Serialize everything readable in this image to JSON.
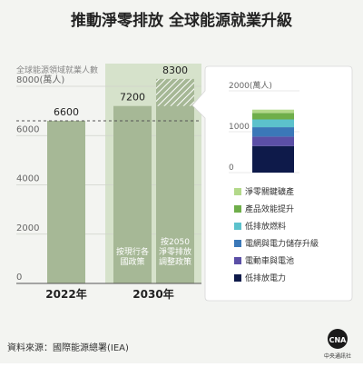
{
  "title": "推動淨零排放 全球能源就業升級",
  "source": "資料來源：國際能源總署(IEA)",
  "logo": {
    "mark": "CNA",
    "caption": "中央通訊社"
  },
  "colors": {
    "background": "#f3f4f1",
    "bar": "#a6b896",
    "bar_highlight_bg": "#d6e2cb",
    "label_light": "#ffffff",
    "legend_text": "#333333"
  },
  "chart_data": [
    {
      "type": "bar",
      "title": "",
      "ylabel": "全球能源領域就業人數",
      "ylim": [
        0,
        8000
      ],
      "yticks": [
        "0",
        "2000",
        "4000",
        "6000",
        "8000(萬人)"
      ],
      "groups": [
        "2022年",
        "2030年"
      ],
      "bars": [
        {
          "group": "2022年",
          "value": 6600,
          "label": "6600",
          "caption": ""
        },
        {
          "group": "2030年",
          "value": 7200,
          "label": "7200",
          "caption": "按現行各國政策"
        },
        {
          "group": "2030年",
          "value": 8300,
          "label": "8300",
          "caption": "按2050淨零排放調整政策"
        }
      ],
      "reference_line": 6600
    },
    {
      "type": "bar",
      "stacked": true,
      "ylim": [
        0,
        2000
      ],
      "yticks": [
        "0",
        "1000",
        "2000(萬人)"
      ],
      "series": [
        {
          "name": "低排放電力",
          "value": 650,
          "color": "#0e1a4a"
        },
        {
          "name": "電動車與電池",
          "value": 230,
          "color": "#5b4fa6"
        },
        {
          "name": "電網與電力儲存升級",
          "value": 230,
          "color": "#3b78b8"
        },
        {
          "name": "低排放燃料",
          "value": 190,
          "color": "#5cc2cc"
        },
        {
          "name": "產品效能提升",
          "value": 160,
          "color": "#6fae4a"
        },
        {
          "name": "淨零關鍵礦產",
          "value": 80,
          "color": "#b3d98a"
        }
      ]
    }
  ]
}
